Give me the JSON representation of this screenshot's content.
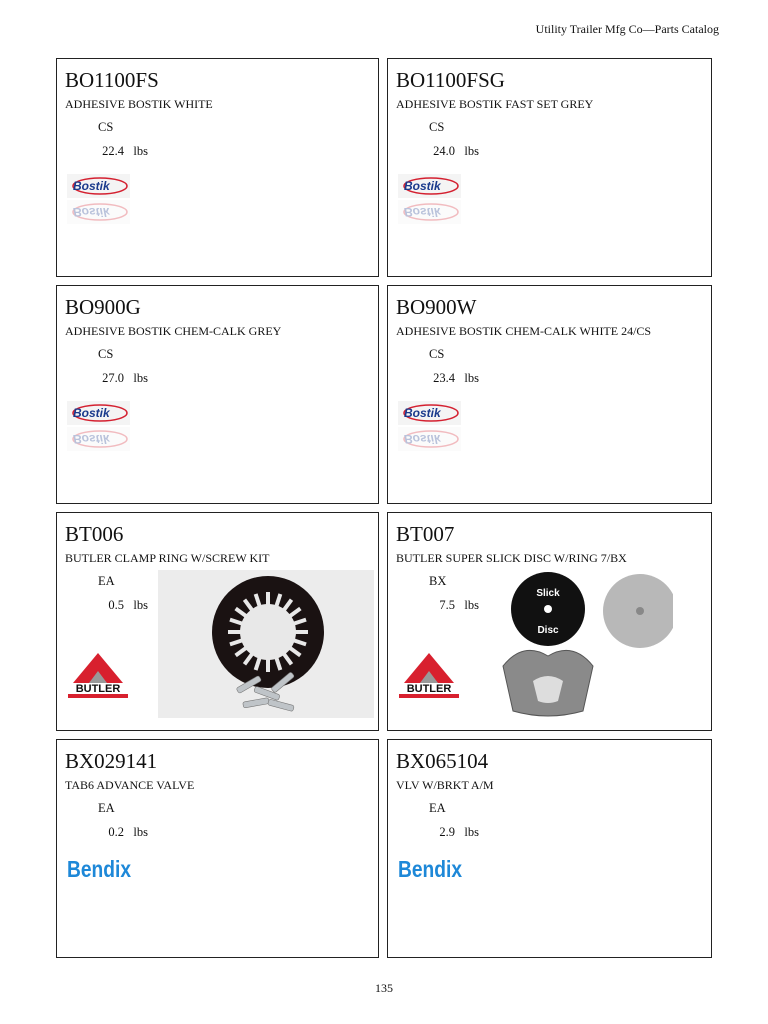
{
  "header": {
    "title": "Utility Trailer Mfg Co—Parts Catalog"
  },
  "page_number": "135",
  "items": [
    {
      "part": "BO1100FS",
      "desc": "ADHESIVE BOSTIK WHITE",
      "unit": "CS",
      "weight": "22.4",
      "weight_unit": "lbs",
      "logo": "Bostik",
      "logo_type": "bostik"
    },
    {
      "part": "BO1100FSG",
      "desc": "ADHESIVE BOSTIK FAST SET GREY",
      "unit": "CS",
      "weight": "24.0",
      "weight_unit": "lbs",
      "logo": "Bostik",
      "logo_type": "bostik"
    },
    {
      "part": "BO900G",
      "desc": "ADHESIVE BOSTIK CHEM-CALK GREY",
      "unit": "CS",
      "weight": "27.0",
      "weight_unit": "lbs",
      "logo": "Bostik",
      "logo_type": "bostik"
    },
    {
      "part": "BO900W",
      "desc": "ADHESIVE BOSTIK CHEM-CALK WHITE 24/CS",
      "unit": "CS",
      "weight": "23.4",
      "weight_unit": "lbs",
      "logo": "Bostik",
      "logo_type": "bostik"
    },
    {
      "part": "BT006",
      "desc": "BUTLER CLAMP RING W/SCREW KIT",
      "unit": "EA",
      "weight": "0.5",
      "weight_unit": "lbs",
      "logo": "BUTLER PRODUCTS",
      "logo_type": "butler",
      "photo": "clamp-ring"
    },
    {
      "part": "BT007",
      "desc": "BUTLER SUPER SLICK DISC W/RING 7/BX",
      "unit": "BX",
      "weight": "7.5",
      "weight_unit": "lbs",
      "logo": "BUTLER PRODUCTS",
      "logo_type": "butler",
      "photo": "slick-disc"
    },
    {
      "part": "BX029141",
      "desc": "TAB6 ADVANCE VALVE",
      "unit": "EA",
      "weight": "0.2",
      "weight_unit": "lbs",
      "logo": "Bendix",
      "logo_type": "bendix"
    },
    {
      "part": "BX065104",
      "desc": "VLV W/BRKT A/M",
      "unit": "EA",
      "weight": "2.9",
      "weight_unit": "lbs",
      "logo": "Bendix",
      "logo_type": "bendix"
    }
  ],
  "colors": {
    "bostik_blue": "#1a3a8c",
    "bostik_red": "#d42030",
    "butler_red": "#d8202e",
    "bendix_blue": "#1e88d8"
  }
}
